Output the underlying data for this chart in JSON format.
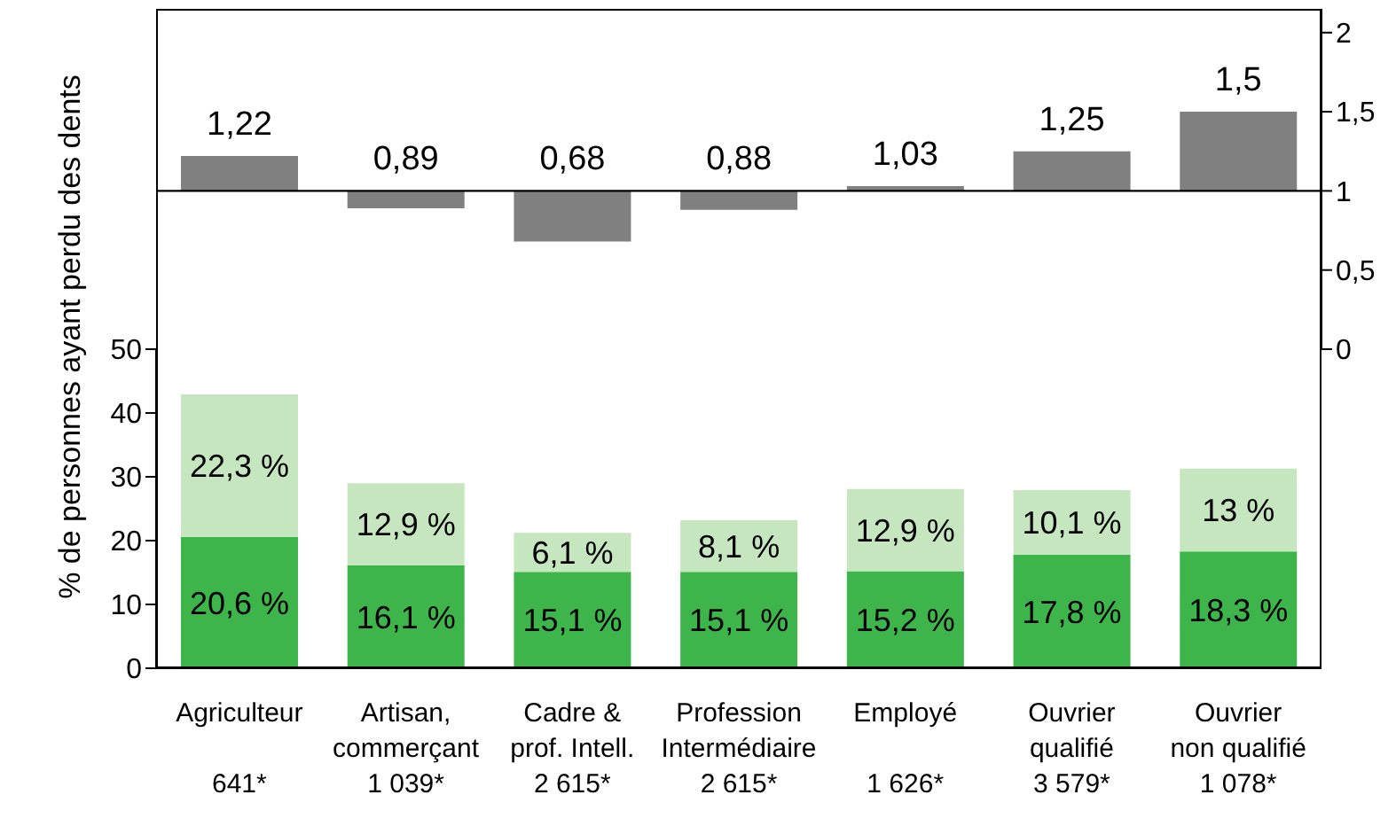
{
  "chart_data": [
    {
      "type": "bar",
      "categories": [
        null,
        null,
        null,
        null,
        null,
        null,
        null
      ],
      "base": [
        1,
        1,
        1,
        1,
        1,
        1,
        1
      ],
      "values": [
        0.22,
        -0.11,
        -0.32,
        -0.12,
        0.03,
        0.25,
        0.5
      ],
      "value_labels": [
        "1,22",
        "0,89",
        "0,68",
        "0,88",
        "1,03",
        "1,25",
        "1,5"
      ],
      "color": "#808080",
      "ylim": [
        0,
        2.15
      ],
      "yticks": [
        0,
        {
          "value": 0.5,
          "label": "0,5"
        },
        1,
        {
          "value": 1.5,
          "label": "1,5"
        },
        2
      ],
      "ref_lines": [
        {
          "axis": "y",
          "value": 1
        }
      ],
      "tick_labels": "y"
    },
    {
      "type": "bar",
      "categories": [
        "Agriculteur\n\n641*",
        "Artisan,\ncommerçant\n1 039*",
        "Cadre &\nprof. Intell.\n2 615*",
        "Profession\nIntermédiaire\n2 615*",
        "Employé\n\n1 626*",
        "Ouvrier\nqualifié\n3 579*",
        "Ouvrier\nnon qualifié\n1 078*"
      ],
      "stacked": true,
      "ylabel": "% de personnes ayant perdu des dents",
      "series": [
        {
          "color": "#3db54a",
          "values": [
            20.6,
            16.1,
            15.1,
            15.1,
            15.2,
            17.8,
            18.3
          ],
          "value_labels": [
            "20,6 %",
            "16,1 %",
            "15,1 %",
            "15,1 %",
            "15,2 %",
            "17,8 %",
            "18,3 %"
          ]
        },
        {
          "color": "#c6e6c0",
          "values": [
            22.3,
            12.9,
            6.1,
            8.1,
            12.9,
            10.1,
            13
          ],
          "value_labels": [
            "22,3 %",
            "12,9 %",
            "6,1 %",
            "8,1 %",
            "12,9 %",
            "10,1 %",
            "13 %"
          ]
        }
      ],
      "ylim": [
        0,
        50
      ],
      "yticks": [
        0,
        10,
        20,
        30,
        40,
        50
      ]
    }
  ]
}
